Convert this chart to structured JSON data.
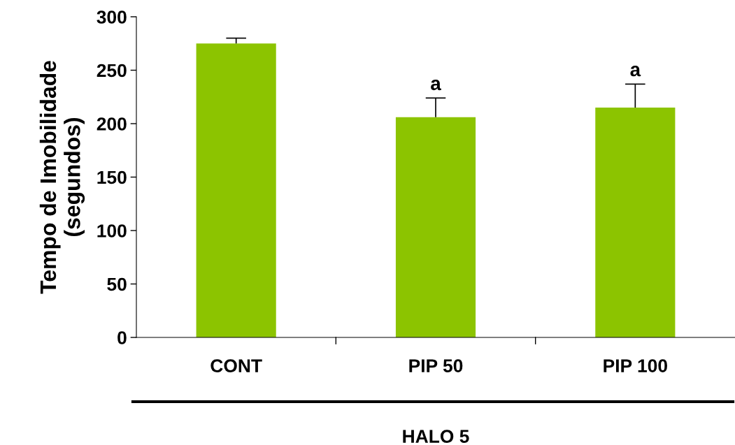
{
  "chart_data": {
    "type": "bar",
    "ylabel": "Tempo de Imobilidade\n(segundos)",
    "xlabel": "HALO 5",
    "categories": [
      "CONT",
      "PIP 50",
      "PIP 100"
    ],
    "values": [
      275,
      206,
      215
    ],
    "errors": [
      [
        275,
        280
      ],
      [
        206,
        224
      ],
      [
        215,
        237
      ]
    ],
    "color": "#8cc400",
    "ylim": [
      0,
      300
    ],
    "yticks": [
      0,
      50,
      100,
      150,
      200,
      250,
      300
    ],
    "grid": false,
    "legend": false,
    "annotations": [
      "a",
      "a"
    ]
  }
}
